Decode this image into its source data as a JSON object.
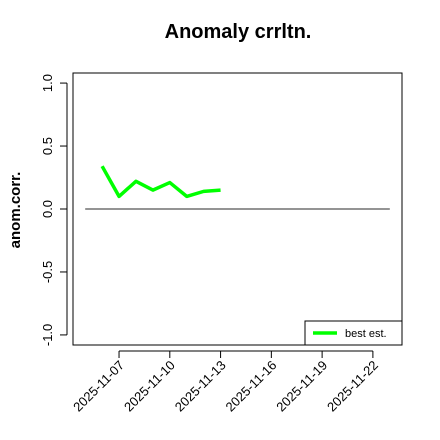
{
  "chart_data": {
    "type": "line",
    "title": "Anomaly crrltn.",
    "y_label": "anom.corr.",
    "x": [
      "2025-11-06",
      "2025-11-07",
      "2025-11-08",
      "2025-11-09",
      "2025-11-10",
      "2025-11-11",
      "2025-11-12",
      "2025-11-13"
    ],
    "series": [
      {
        "name": "best est.",
        "color": "#00ff00",
        "values": [
          0.34,
          0.1,
          0.22,
          0.15,
          0.21,
          0.1,
          0.14,
          0.15
        ]
      }
    ],
    "reference_line": {
      "value": 0,
      "x": [
        "2025-11-05",
        "2025-11-23"
      ],
      "color": "#555555"
    },
    "xlim": [
      "2025-11-05",
      "2025-11-23"
    ],
    "xticks": [
      "2025-11-07",
      "2025-11-10",
      "2025-11-13",
      "2025-11-16",
      "2025-11-19",
      "2025-11-22"
    ],
    "xtick_colors": [
      "#000000",
      "#000000",
      "#228b22",
      "#000000",
      "#000000",
      "#000000"
    ],
    "ylim": [
      -1.08,
      1.08
    ],
    "yticks": [
      {
        "value": -1,
        "label": "-1.0"
      },
      {
        "value": -0.5,
        "label": "-0.5"
      },
      {
        "value": 0,
        "label": "0.0"
      },
      {
        "value": 0.5,
        "label": "0.5"
      },
      {
        "value": 1,
        "label": "1.0"
      }
    ],
    "legend": "bottomright"
  }
}
